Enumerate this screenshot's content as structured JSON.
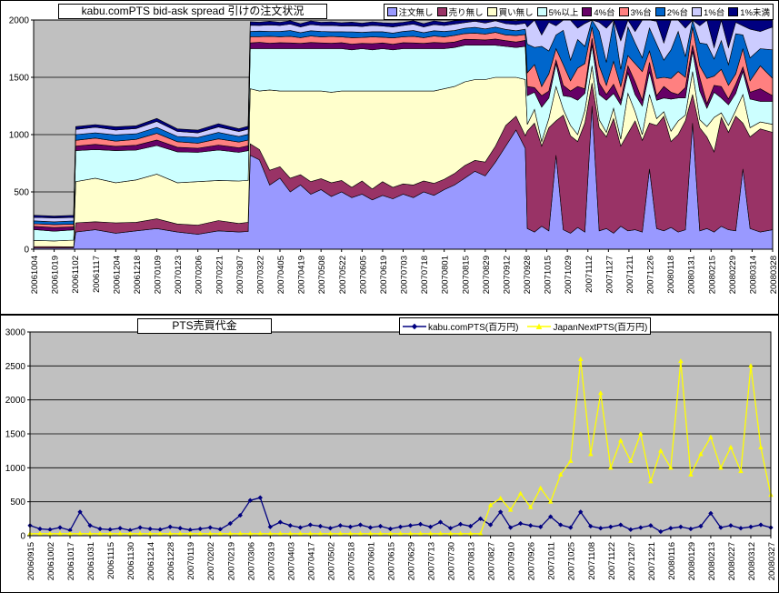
{
  "chart_data": [
    {
      "type": "area",
      "stacked": true,
      "title": "kabu.comPTS bid-ask spread 引けの注文状況",
      "ylim": [
        0,
        2000
      ],
      "yticks": [
        0,
        500,
        1000,
        1500,
        2000
      ],
      "plot_bg": "#C0C0C0",
      "grid": true,
      "legend_position": "top-right",
      "x_labels": [
        "20061004",
        "20061019",
        "20061102",
        "20061117",
        "20061204",
        "20061218",
        "20070109",
        "20070123",
        "20070206",
        "20070221",
        "20070307",
        "20070322",
        "20070405",
        "20070419",
        "20070508",
        "20070522",
        "20070605",
        "20070619",
        "20070703",
        "20070718",
        "20070801",
        "20070815",
        "20070829",
        "20070912",
        "20070928",
        "20071015",
        "20071029",
        "20071112",
        "20071127",
        "20071211",
        "20071226",
        "20080118",
        "20080131",
        "20080215",
        "20080229",
        "20080314",
        "20080328"
      ],
      "sample_x": [
        0,
        1,
        1.95,
        2.05,
        3,
        4,
        5,
        6,
        7,
        8,
        9,
        10,
        10.45,
        10.55,
        11,
        11.5,
        12,
        12.5,
        13,
        13.5,
        14,
        14.5,
        15,
        15.5,
        16,
        16.5,
        17,
        17.5,
        18,
        18.5,
        19,
        19.5,
        20,
        20.5,
        21,
        21.5,
        22,
        22.5,
        23,
        23.5,
        23.95,
        24.05,
        24.4,
        24.75,
        25.1,
        25.45,
        25.8,
        26.15,
        26.5,
        26.85,
        27.2,
        27.55,
        27.9,
        28.25,
        28.6,
        28.95,
        29.3,
        29.65,
        30,
        30.35,
        30.7,
        31.05,
        31.4,
        31.75,
        32.1,
        32.45,
        32.8,
        33.15,
        33.5,
        33.85,
        34.2,
        34.55,
        34.9,
        35.4,
        36
      ],
      "series": [
        {
          "name": "注文無し",
          "color": "#9999FF",
          "values": [
            12,
            10,
            11,
            150,
            170,
            140,
            160,
            180,
            150,
            130,
            160,
            150,
            155,
            820,
            780,
            560,
            620,
            500,
            560,
            480,
            520,
            460,
            500,
            450,
            480,
            430,
            470,
            440,
            480,
            450,
            500,
            470,
            520,
            560,
            620,
            680,
            640,
            760,
            900,
            1040,
            880,
            180,
            150,
            200,
            160,
            820,
            170,
            140,
            190,
            150,
            1250,
            160,
            180,
            140,
            200,
            160,
            170,
            150,
            700,
            180,
            160,
            190,
            150,
            170,
            1100,
            160,
            180,
            150,
            200,
            170,
            160,
            700,
            180,
            150,
            170
          ]
        },
        {
          "name": "売り無し",
          "color": "#993366",
          "values": [
            10,
            12,
            10,
            80,
            70,
            90,
            75,
            85,
            70,
            80,
            90,
            75,
            80,
            100,
            90,
            130,
            100,
            120,
            90,
            110,
            95,
            120,
            100,
            90,
            115,
            95,
            120,
            100,
            90,
            110,
            95,
            105,
            90,
            100,
            110,
            95,
            120,
            140,
            180,
            120,
            110,
            850,
            950,
            700,
            900,
            300,
            1000,
            850,
            750,
            950,
            200,
            900,
            800,
            1000,
            700,
            850,
            950,
            800,
            400,
            900,
            1000,
            750,
            850,
            950,
            250,
            900,
            800,
            700,
            950,
            850,
            1000,
            400,
            800,
            900,
            850
          ]
        },
        {
          "name": "買い無し",
          "color": "#FFFFCC",
          "values": [
            55,
            50,
            58,
            360,
            380,
            350,
            370,
            390,
            360,
            380,
            350,
            370,
            365,
            480,
            510,
            700,
            660,
            760,
            730,
            790,
            765,
            790,
            780,
            840,
            785,
            855,
            790,
            840,
            810,
            820,
            785,
            805,
            790,
            760,
            730,
            705,
            720,
            600,
            420,
            340,
            490,
            60,
            120,
            40,
            80,
            300,
            50,
            90,
            60,
            110,
            150,
            70,
            40,
            90,
            60,
            350,
            80,
            50,
            250,
            60,
            40,
            90,
            120,
            50,
            200,
            70,
            90,
            300,
            40,
            60,
            50,
            250,
            80,
            60,
            70
          ]
        },
        {
          "name": "5%以上",
          "color": "#CCFFFF",
          "values": [
            95,
            85,
            90,
            270,
            250,
            280,
            260,
            250,
            270,
            255,
            265,
            250,
            260,
            350,
            370,
            360,
            370,
            370,
            370,
            370,
            370,
            380,
            370,
            360,
            370,
            360,
            370,
            360,
            370,
            370,
            370,
            370,
            350,
            340,
            320,
            300,
            300,
            280,
            270,
            260,
            290,
            250,
            150,
            300,
            180,
            200,
            120,
            250,
            300,
            150,
            180,
            220,
            280,
            130,
            300,
            180,
            150,
            250,
            200,
            160,
            120,
            280,
            200,
            150,
            180,
            250,
            160,
            220,
            130,
            180,
            150,
            200,
            250,
            180,
            200
          ]
        },
        {
          "name": "4%台",
          "color": "#660066",
          "values": [
            28,
            32,
            26,
            40,
            45,
            38,
            42,
            48,
            40,
            36,
            44,
            40,
            42,
            50,
            55,
            48,
            52,
            50,
            46,
            54,
            50,
            48,
            52,
            50,
            46,
            54,
            50,
            48,
            52,
            50,
            46,
            54,
            50,
            48,
            52,
            50,
            46,
            54,
            50,
            48,
            52,
            80,
            40,
            100,
            60,
            30,
            90,
            50,
            120,
            40,
            60,
            100,
            50,
            80,
            40,
            60,
            110,
            50,
            80,
            40,
            100,
            60,
            30,
            90,
            50,
            120,
            40,
            60,
            100,
            50,
            80,
            40,
            60,
            110,
            50
          ]
        },
        {
          "name": "3%台",
          "color": "#FF8080",
          "values": [
            22,
            26,
            24,
            50,
            55,
            45,
            52,
            58,
            48,
            44,
            54,
            50,
            50,
            55,
            50,
            60,
            52,
            58,
            50,
            56,
            52,
            58,
            50,
            56,
            52,
            58,
            50,
            56,
            52,
            58,
            50,
            56,
            52,
            58,
            50,
            56,
            52,
            58,
            50,
            56,
            52,
            120,
            200,
            80,
            150,
            100,
            180,
            90,
            160,
            220,
            100,
            150,
            80,
            200,
            120,
            90,
            160,
            250,
            100,
            150,
            80,
            120,
            200,
            90,
            160,
            100,
            220,
            80,
            150,
            120,
            90,
            160,
            100,
            200,
            150
          ]
        },
        {
          "name": "2%台",
          "color": "#0066CC",
          "values": [
            26,
            24,
            28,
            50,
            45,
            55,
            48,
            52,
            46,
            50,
            56,
            48,
            50,
            45,
            48,
            42,
            46,
            50,
            44,
            46,
            48,
            42,
            46,
            50,
            44,
            46,
            48,
            42,
            46,
            50,
            44,
            46,
            48,
            42,
            46,
            50,
            44,
            46,
            48,
            42,
            46,
            250,
            150,
            350,
            200,
            120,
            300,
            180,
            250,
            150,
            100,
            300,
            200,
            350,
            150,
            250,
            180,
            120,
            200,
            300,
            150,
            250,
            350,
            180,
            120,
            200,
            300,
            150,
            250,
            180,
            350,
            120,
            200,
            150,
            250
          ]
        },
        {
          "name": "1%台",
          "color": "#CCCCFF",
          "values": [
            30,
            34,
            30,
            45,
            50,
            42,
            46,
            52,
            44,
            40,
            48,
            44,
            46,
            55,
            50,
            58,
            52,
            56,
            50,
            54,
            52,
            56,
            50,
            54,
            52,
            56,
            50,
            54,
            52,
            56,
            50,
            54,
            52,
            56,
            50,
            54,
            52,
            56,
            50,
            54,
            52,
            150,
            300,
            100,
            250,
            80,
            150,
            350,
            100,
            200,
            150,
            80,
            300,
            100,
            250,
            150,
            100,
            350,
            80,
            200,
            150,
            300,
            100,
            250,
            80,
            150,
            350,
            100,
            200,
            150,
            100,
            80,
            250,
            150,
            200
          ]
        },
        {
          "name": "1%未満",
          "color": "#000080",
          "values": [
            18,
            16,
            18,
            25,
            22,
            28,
            24,
            26,
            22,
            25,
            28,
            24,
            25,
            30,
            28,
            32,
            28,
            30,
            28,
            32,
            28,
            30,
            28,
            32,
            28,
            30,
            28,
            32,
            28,
            30,
            28,
            32,
            28,
            30,
            28,
            32,
            28,
            30,
            28,
            32,
            28,
            400,
            600,
            300,
            500,
            200,
            450,
            550,
            350,
            600,
            250,
            400,
            500,
            300,
            550,
            400,
            450,
            350,
            200,
            500,
            600,
            300,
            400,
            550,
            250,
            450,
            350,
            600,
            300,
            500,
            400,
            250,
            350,
            600,
            450
          ]
        }
      ]
    },
    {
      "type": "line",
      "title": "PTS売買代金",
      "ylim": [
        0,
        3000
      ],
      "yticks": [
        0,
        500,
        1000,
        1500,
        2000,
        2500,
        3000
      ],
      "plot_bg": "#C0C0C0",
      "grid": true,
      "legend_position": "top",
      "x_step": 0.5,
      "x_labels": [
        "20060915",
        "20061002",
        "20061017",
        "20061031",
        "20061115",
        "20061130",
        "20061214",
        "20061228",
        "20070119",
        "20070202",
        "20070219",
        "20070306",
        "20070319",
        "20070403",
        "20070417",
        "20070502",
        "20070518",
        "20070601",
        "20070615",
        "20070629",
        "20070713",
        "20070730",
        "20070813",
        "20070827",
        "20070910",
        "20070926",
        "20071011",
        "20071025",
        "20071108",
        "20071122",
        "20071207",
        "20071221",
        "20080116",
        "20080129",
        "20080213",
        "20080227",
        "20080312",
        "20080327"
      ],
      "series": [
        {
          "name": "kabu.comPTS(百万円)",
          "color": "#000080",
          "marker": "diamond",
          "values": [
            150,
            100,
            90,
            120,
            80,
            350,
            150,
            100,
            90,
            110,
            80,
            120,
            100,
            90,
            130,
            110,
            85,
            100,
            120,
            95,
            180,
            300,
            520,
            560,
            130,
            200,
            150,
            120,
            160,
            140,
            110,
            150,
            130,
            160,
            120,
            140,
            100,
            130,
            150,
            170,
            130,
            200,
            110,
            170,
            140,
            250,
            160,
            350,
            120,
            180,
            150,
            130,
            280,
            160,
            120,
            350,
            140,
            110,
            130,
            160,
            90,
            120,
            150,
            60,
            110,
            130,
            100,
            140,
            330,
            120,
            150,
            110,
            130,
            160,
            120
          ]
        },
        {
          "name": "JapanNextPTS(百万円)",
          "color": "#FFFF00",
          "marker": "triangle",
          "values": [
            30,
            30,
            30,
            30,
            30,
            30,
            30,
            30,
            30,
            30,
            30,
            30,
            30,
            30,
            30,
            30,
            30,
            30,
            30,
            30,
            30,
            30,
            30,
            30,
            30,
            30,
            30,
            30,
            30,
            30,
            30,
            30,
            30,
            30,
            30,
            30,
            30,
            30,
            30,
            30,
            30,
            30,
            30,
            30,
            30,
            30,
            450,
            550,
            380,
            620,
            420,
            700,
            500,
            900,
            1100,
            2600,
            1200,
            2100,
            1000,
            1400,
            1100,
            1500,
            800,
            1250,
            1000,
            2570,
            900,
            1200,
            1450,
            1000,
            1300,
            950,
            2500,
            1300,
            600
          ]
        }
      ]
    }
  ]
}
